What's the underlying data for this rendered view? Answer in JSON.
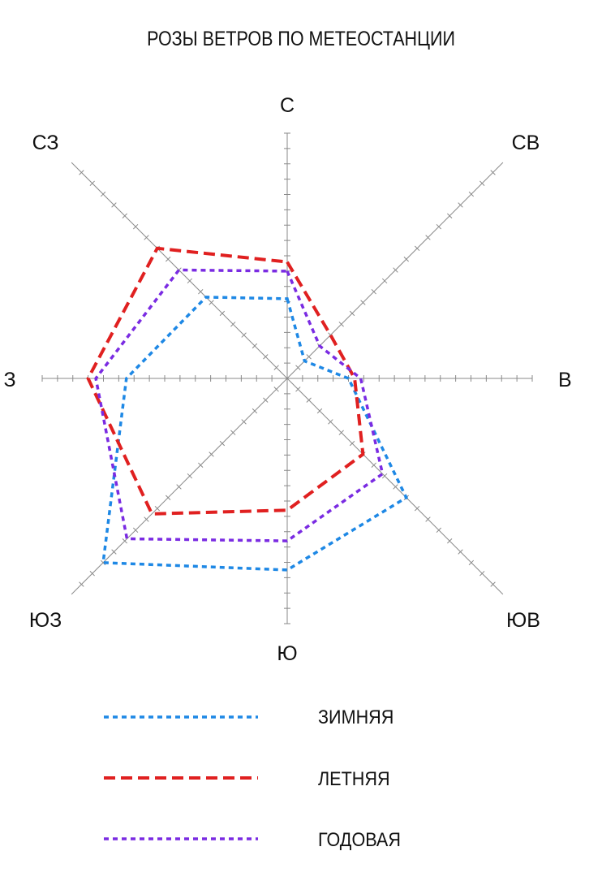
{
  "chart_data": {
    "type": "radar",
    "title": "РОЗЫ ВЕТРОВ ПО МЕТЕОСТАНЦИИ",
    "directions": [
      "С",
      "СВ",
      "В",
      "ЮВ",
      "Ю",
      "ЮЗ",
      "З",
      "СЗ"
    ],
    "max": 16,
    "ticks": 16,
    "series": [
      {
        "name": "ЗИМНЯЯ",
        "color": "#1e88e5",
        "style": "dotted",
        "values": [
          5.2,
          1.6,
          4.0,
          11.0,
          12.5,
          17.0,
          10.5,
          7.5
        ]
      },
      {
        "name": "ЛЕТНЯЯ",
        "color": "#e02020",
        "style": "dashed",
        "values": [
          7.6,
          4.0,
          4.4,
          7.0,
          8.6,
          12.5,
          13.0,
          12.0
        ]
      },
      {
        "name": "ГОДОВАЯ",
        "color": "#7a2be2",
        "style": "dotted",
        "values": [
          7.0,
          3.0,
          4.8,
          8.8,
          10.6,
          14.8,
          12.5,
          10.0
        ]
      }
    ]
  }
}
